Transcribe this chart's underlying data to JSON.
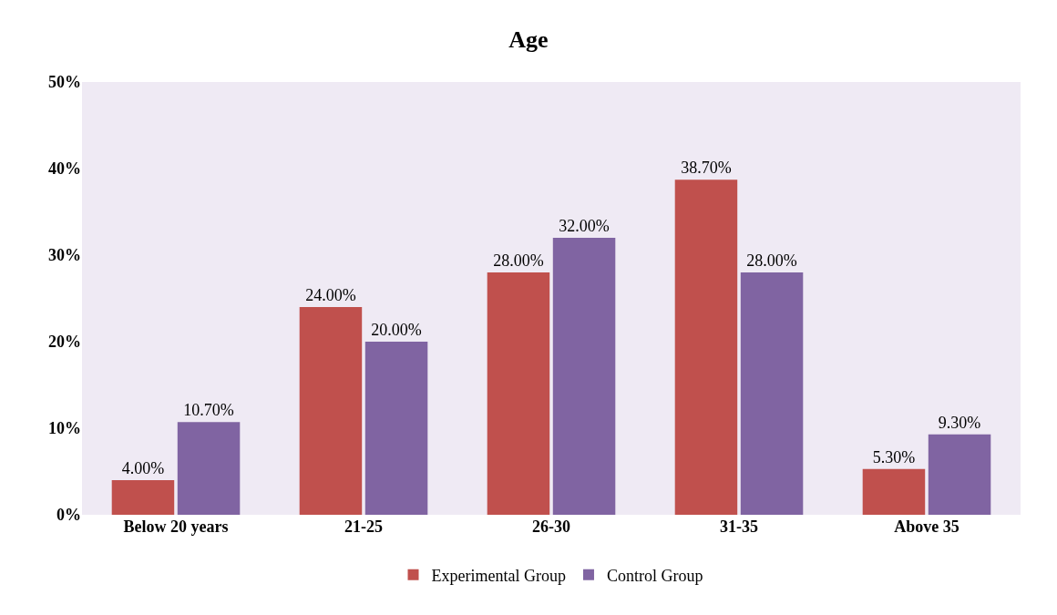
{
  "chart_data": {
    "type": "bar",
    "title": "Age",
    "categories": [
      "Below 20 years",
      "21-25",
      "26-30",
      "31-35",
      "Above 35"
    ],
    "series": [
      {
        "name": "Experimental Group",
        "color": "#c0504d",
        "values": [
          4.0,
          24.0,
          28.0,
          38.7,
          5.3
        ],
        "value_labels": [
          "4.00%",
          "24.00%",
          "28.00%",
          "38.70%",
          "5.30%"
        ]
      },
      {
        "name": "Control Group",
        "color": "#8064a2",
        "values": [
          10.7,
          20.0,
          32.0,
          28.0,
          9.3
        ],
        "value_labels": [
          "10.70%",
          "20.00%",
          "32.00%",
          "28.00%",
          "9.30%"
        ]
      }
    ],
    "ylim": [
      0,
      50
    ],
    "yticks": [
      {
        "value": 0,
        "label": "0%"
      },
      {
        "value": 10,
        "label": "10%"
      },
      {
        "value": 20,
        "label": "20%"
      },
      {
        "value": 30,
        "label": "30%"
      },
      {
        "value": 40,
        "label": "40%"
      },
      {
        "value": 50,
        "label": "50%"
      }
    ],
    "grid": false,
    "legend": "bottom"
  }
}
